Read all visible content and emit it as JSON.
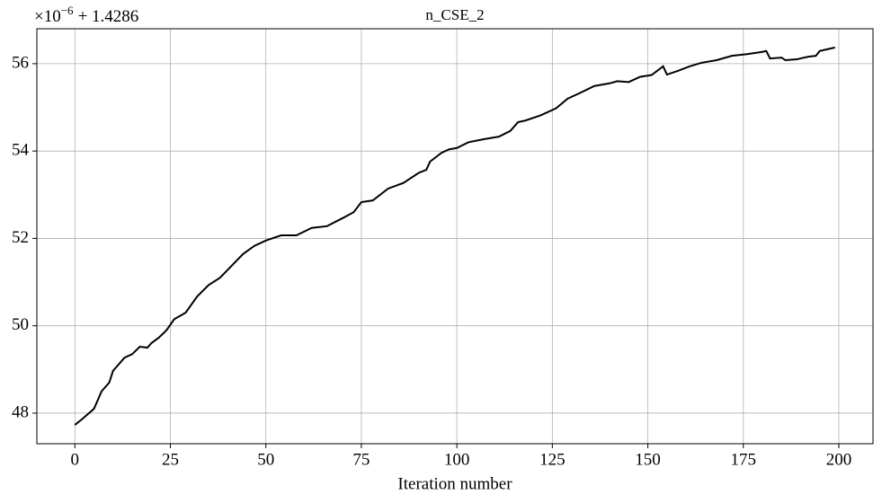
{
  "chart_data": {
    "type": "line",
    "title": "n_CSE_2",
    "xlabel": "Iteration number",
    "offset_label": {
      "base": "×10",
      "exponent": "−6",
      "suffix": "+ 1.4286"
    },
    "x": [
      0,
      2,
      5,
      7,
      9,
      10,
      13,
      15,
      17,
      19,
      20,
      22,
      24,
      26,
      29,
      32,
      35,
      38,
      41,
      44,
      47,
      50,
      54,
      58,
      62,
      66,
      70,
      73,
      75,
      78,
      82,
      86,
      90,
      92,
      93,
      96,
      98,
      100,
      103,
      107,
      111,
      114,
      116,
      118,
      122,
      126,
      129,
      132,
      136,
      140,
      142,
      145,
      148,
      151,
      154,
      155,
      158,
      161,
      164,
      168,
      172,
      176,
      180,
      181,
      182,
      185,
      186,
      189,
      192,
      194,
      195,
      199
    ],
    "series": [
      {
        "name": "n_CSE_2",
        "color": "#000000",
        "values": [
          47.73,
          47.87,
          48.1,
          48.5,
          48.7,
          48.97,
          49.27,
          49.35,
          49.52,
          49.5,
          49.6,
          49.73,
          49.9,
          50.15,
          50.3,
          50.67,
          50.93,
          51.1,
          51.37,
          51.64,
          51.83,
          51.95,
          52.07,
          52.07,
          52.24,
          52.28,
          52.46,
          52.6,
          52.83,
          52.87,
          53.14,
          53.27,
          53.5,
          53.57,
          53.76,
          53.96,
          54.04,
          54.07,
          54.2,
          54.27,
          54.33,
          54.46,
          54.66,
          54.7,
          54.82,
          54.98,
          55.2,
          55.32,
          55.49,
          55.55,
          55.6,
          55.58,
          55.7,
          55.74,
          55.94,
          55.75,
          55.84,
          55.94,
          56.02,
          56.08,
          56.18,
          56.22,
          56.27,
          56.29,
          56.12,
          56.14,
          56.08,
          56.1,
          56.16,
          56.18,
          56.29,
          56.37
        ]
      }
    ],
    "xlim": [
      -9.95,
      208.95
    ],
    "xticks": [
      0,
      25,
      50,
      75,
      100,
      125,
      150,
      175,
      200
    ],
    "ylim": [
      47.3,
      56.8
    ],
    "yticks": [
      48,
      50,
      52,
      54,
      56
    ],
    "grid": true
  }
}
